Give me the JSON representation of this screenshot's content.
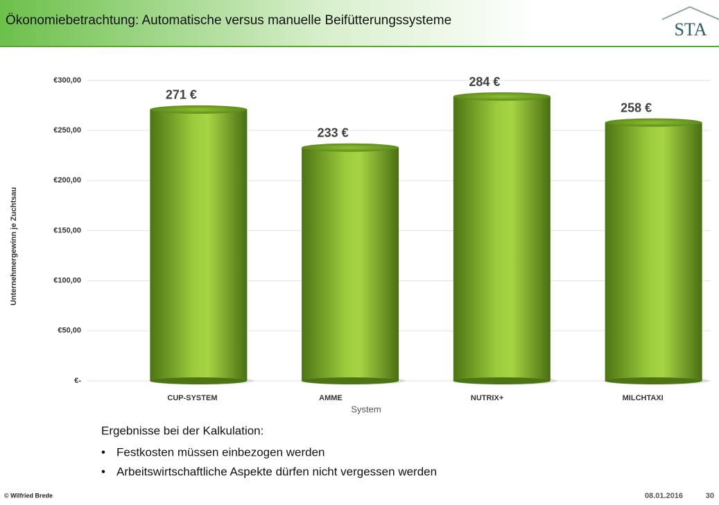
{
  "header": {
    "title": "Ökonomiebetrachtung: Automatische versus manuelle Beifütterungssysteme",
    "logo": "STA"
  },
  "chart_data": {
    "type": "bar",
    "categories": [
      "CUP-SYSTEM",
      "AMME",
      "NUTRIX+",
      "MILCHTAXI"
    ],
    "values": [
      271,
      233,
      284,
      258
    ],
    "value_labels": [
      "271 €",
      "233 €",
      "284 €",
      "258 €"
    ],
    "color": "#7aa82a",
    "ylabel": "Unternehmergewinn je Zuchtsau",
    "xlabel": "System",
    "ylim": [
      0,
      300
    ],
    "yticks": [
      {
        "value": 0,
        "label": "€-"
      },
      {
        "value": 50,
        "label": "€50,00"
      },
      {
        "value": 100,
        "label": "€100,00"
      },
      {
        "value": 150,
        "label": "€150,00"
      },
      {
        "value": 200,
        "label": "€200,00"
      },
      {
        "value": 250,
        "label": "€250,00"
      },
      {
        "value": 300,
        "label": "€300,00"
      }
    ],
    "grid": true
  },
  "notes": {
    "heading": "Ergebnisse bei der Kalkulation:",
    "bullets": [
      "Festkosten müssen einbezogen werden",
      "Arbeitswirtschaftliche Aspekte dürfen nicht vergessen werden"
    ]
  },
  "footer": {
    "author": "© Wilfried Brede",
    "date": "08.01.2016",
    "page": "30"
  }
}
